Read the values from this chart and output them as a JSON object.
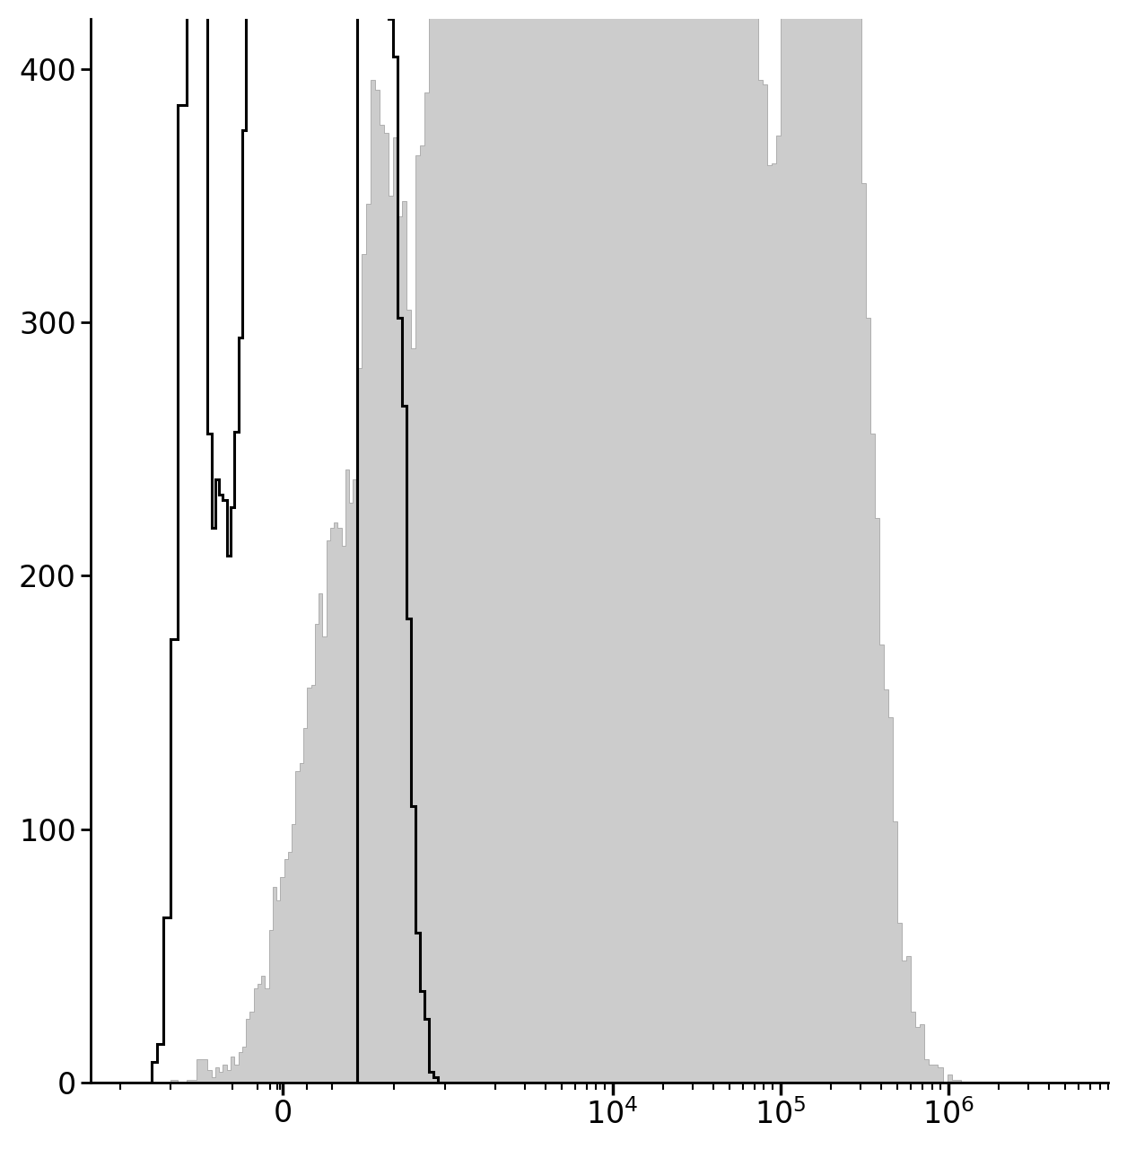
{
  "ylim": [
    0,
    420
  ],
  "yticks": [
    0,
    100,
    200,
    300,
    400
  ],
  "background_color": "#ffffff",
  "gray_fill_color": "#cccccc",
  "gray_edge_color": "#999999",
  "black_line_color": "#000000",
  "figure_width": 12.56,
  "figure_height": 12.8,
  "dpi": 100,
  "symlog_linthresh": 300,
  "symlog_linscale": 0.4,
  "xlim_min": -1500,
  "xlim_max": 3000000
}
